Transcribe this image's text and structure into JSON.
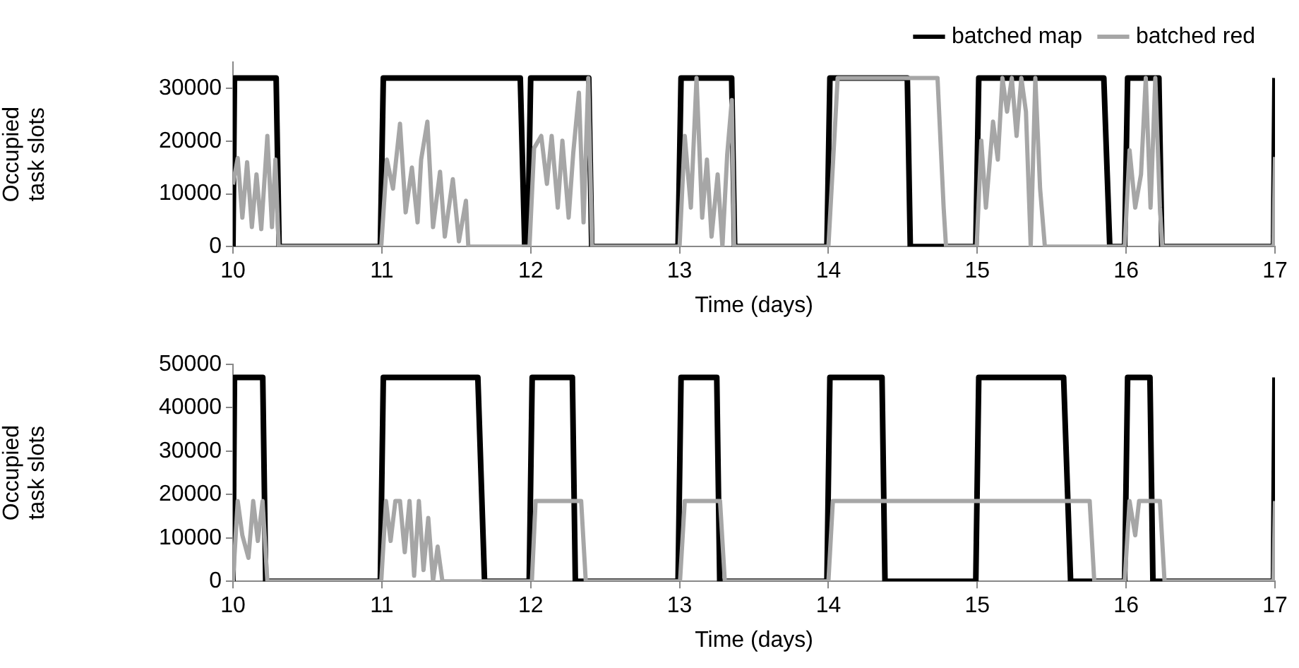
{
  "chart_data": [
    {
      "type": "line",
      "xlabel": "Time (days)",
      "ylabel": "Occupied task slots",
      "xlim": [
        10,
        17
      ],
      "xticks": [
        10,
        11,
        12,
        13,
        14,
        15,
        16,
        17
      ],
      "ylim": [
        0,
        35000
      ],
      "yticks": [
        0,
        10000,
        20000,
        30000
      ],
      "grid": false,
      "legend": "top right",
      "marker": "none",
      "series": [
        {
          "name": "batched map",
          "color": "#000000",
          "x": [
            10,
            10.01,
            10.29,
            10.31,
            10.99,
            11.01,
            11.93,
            11.96,
            11.98,
            12.0,
            12.39,
            12.41,
            12.99,
            13.01,
            13.35,
            13.37,
            13.99,
            14.01,
            14.53,
            14.55,
            14.99,
            15.01,
            15.85,
            15.89,
            15.99,
            16.01,
            16.22,
            16.24,
            16.99,
            17
          ],
          "values": [
            0,
            32000,
            32000,
            0,
            0,
            32000,
            32000,
            0,
            0,
            32000,
            32000,
            0,
            0,
            32000,
            32000,
            0,
            0,
            32000,
            32000,
            0,
            0,
            32000,
            32000,
            0,
            0,
            32000,
            32000,
            0,
            0,
            32000
          ]
        },
        {
          "name": "batched red",
          "color": "#a6a6a6",
          "x": [
            10.0,
            10.032,
            10.063,
            10.095,
            10.127,
            10.158,
            10.19,
            10.231,
            10.262,
            10.285,
            10.307,
            10.996,
            11.034,
            11.075,
            11.122,
            11.16,
            11.202,
            11.24,
            11.264,
            11.306,
            11.344,
            11.391,
            11.423,
            11.477,
            11.518,
            11.565,
            11.581,
            11.992,
            12.023,
            12.071,
            12.109,
            12.141,
            12.182,
            12.213,
            12.255,
            12.286,
            12.324,
            12.355,
            12.387,
            12.412,
            13.0,
            13.035,
            13.076,
            13.114,
            13.152,
            13.184,
            13.215,
            13.256,
            13.288,
            13.32,
            13.351,
            13.367,
            14.0,
            14.062,
            14.733,
            14.774,
            14.79,
            14.996,
            15.027,
            15.058,
            15.106,
            15.138,
            15.169,
            15.2,
            15.232,
            15.264,
            15.296,
            15.327,
            15.359,
            15.39,
            15.422,
            15.454,
            15.99,
            16.023,
            16.061,
            16.1,
            16.132,
            16.164,
            16.196,
            16.227,
            16.243,
            16.99,
            17.0
          ],
          "values": [
            11800,
            16800,
            5500,
            16000,
            3700,
            13700,
            3300,
            21000,
            3700,
            16500,
            0,
            0,
            16500,
            11000,
            23300,
            6500,
            15000,
            4600,
            16500,
            23700,
            3700,
            14200,
            1900,
            12800,
            1000,
            8700,
            0,
            0,
            18700,
            21000,
            11900,
            21000,
            7400,
            20100,
            5500,
            17800,
            29200,
            4600,
            32000,
            0,
            0,
            21000,
            7400,
            32000,
            5500,
            16500,
            1900,
            13700,
            0,
            17400,
            27800,
            0,
            0,
            32000,
            32000,
            7400,
            0,
            0,
            20100,
            7400,
            23700,
            16500,
            32000,
            25600,
            32000,
            21000,
            32000,
            25600,
            0,
            32000,
            11000,
            0,
            0,
            18300,
            7400,
            13700,
            32000,
            7400,
            32000,
            7400,
            0,
            0,
            17000
          ]
        }
      ]
    },
    {
      "type": "line",
      "xlabel": "Time (days)",
      "ylabel": "Occupied task slots",
      "xlim": [
        10,
        17
      ],
      "xticks": [
        10,
        11,
        12,
        13,
        14,
        15,
        16,
        17
      ],
      "ylim": [
        0,
        50000
      ],
      "yticks": [
        0,
        10000,
        20000,
        30000,
        40000,
        50000
      ],
      "grid": false,
      "marker": "none",
      "series": [
        {
          "color": "#000000",
          "x": [
            10,
            10.01,
            10.2,
            10.22,
            10.99,
            11.01,
            11.645,
            11.69,
            11.99,
            12.01,
            12.28,
            12.3,
            12.99,
            13.01,
            13.25,
            13.27,
            13.99,
            14.01,
            14.36,
            14.38,
            14.99,
            15.01,
            15.58,
            15.627,
            15.99,
            16.01,
            16.16,
            16.18,
            16.99,
            17
          ],
          "values": [
            0,
            47000,
            47000,
            0,
            0,
            47000,
            47000,
            0,
            0,
            47000,
            47000,
            0,
            0,
            47000,
            47000,
            0,
            0,
            47000,
            47000,
            0,
            0,
            47000,
            47000,
            0,
            0,
            47000,
            47000,
            0,
            0,
            47000
          ]
        },
        {
          "color": "#a6a6a6",
          "x": [
            10.0,
            10.032,
            10.063,
            10.104,
            10.136,
            10.167,
            10.199,
            10.231,
            10.996,
            11.028,
            11.059,
            11.091,
            11.122,
            11.154,
            11.186,
            11.217,
            11.249,
            11.28,
            11.312,
            11.344,
            11.375,
            11.407,
            12.008,
            12.033,
            12.339,
            12.37,
            13.003,
            13.035,
            13.272,
            13.304,
            14.0,
            14.03,
            15.755,
            15.786,
            15.99,
            16.023,
            16.061,
            16.087,
            16.227,
            16.258,
            16.99,
            17.0
          ],
          "values": [
            0,
            18500,
            10600,
            5400,
            18500,
            9300,
            18500,
            0,
            0,
            18500,
            9300,
            18500,
            18500,
            6700,
            18500,
            1300,
            18500,
            2600,
            14600,
            0,
            8000,
            0,
            0,
            18500,
            18500,
            0,
            0,
            18500,
            18500,
            0,
            0,
            18500,
            18500,
            0,
            0,
            18500,
            10600,
            18500,
            18500,
            0,
            0,
            18500
          ]
        }
      ]
    }
  ]
}
